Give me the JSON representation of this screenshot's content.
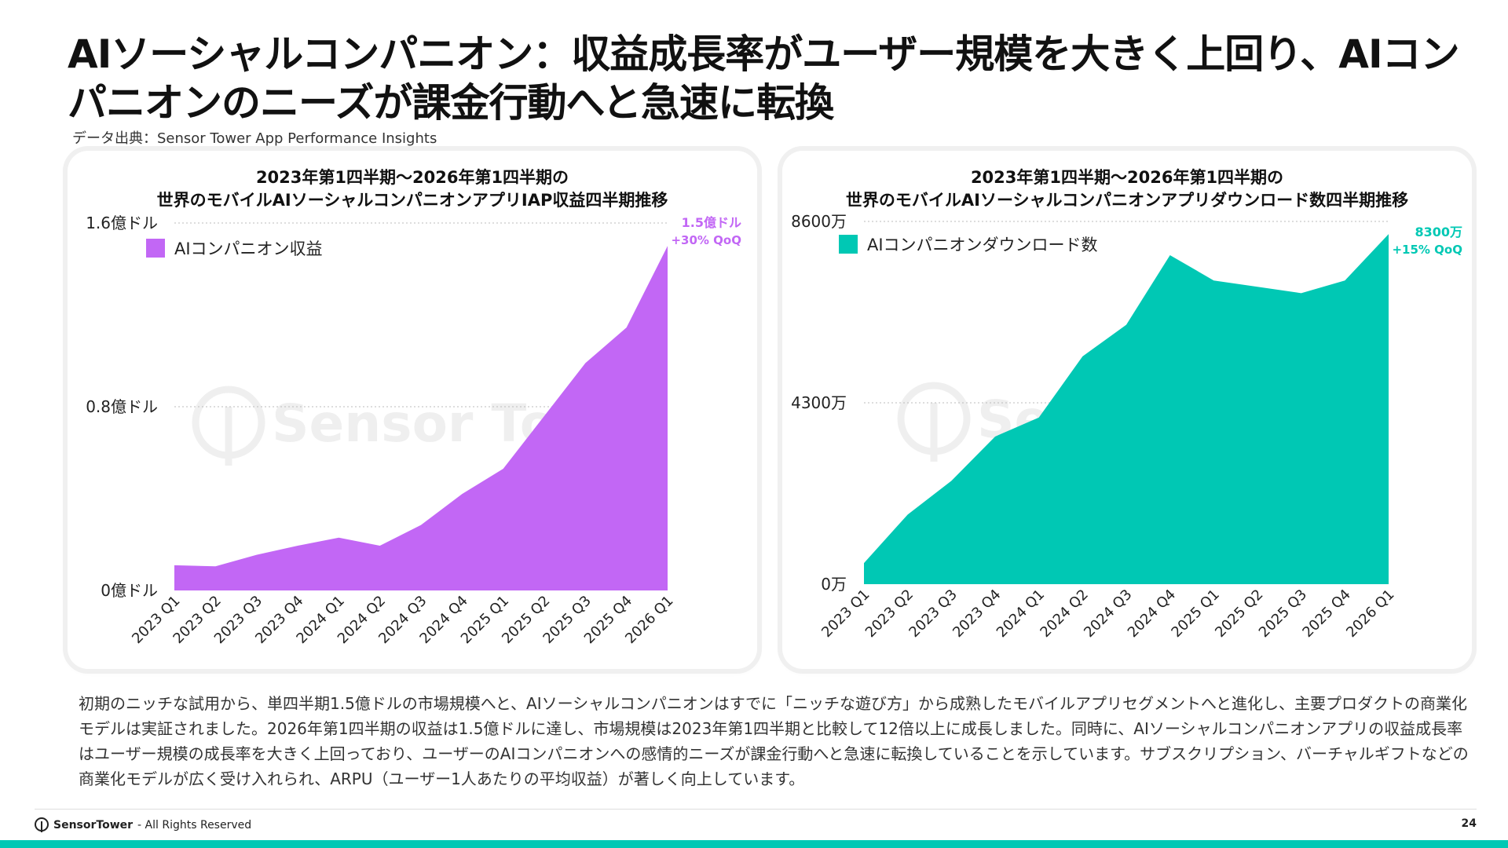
{
  "title": "AIソーシャルコンパニオン：収益成長率がユーザー規模を大きく上回り、AIコンパニオンのニーズが課金行動へと急速に転換",
  "source": "データ出典：Sensor Tower App Performance Insights",
  "watermark": "Sensor Tower",
  "chart_data": [
    {
      "type": "area",
      "title": "2023年第1四半期〜2026年第1四半期の",
      "subtitle": "世界のモバイルAIソーシャルコンパニオンアプリIAP収益四半期推移",
      "categories": [
        "2023 Q1",
        "2023 Q2",
        "2023 Q3",
        "2023 Q4",
        "2024 Q1",
        "2024 Q2",
        "2024 Q3",
        "2024 Q4",
        "2025 Q1",
        "2025 Q2",
        "2025 Q3",
        "2025 Q4",
        "2026 Q1"
      ],
      "series": [
        {
          "name": "AIコンパニオン収益",
          "values": [
            0.11,
            0.105,
            0.155,
            0.195,
            0.23,
            0.195,
            0.285,
            0.42,
            0.53,
            0.76,
            0.99,
            1.145,
            1.5
          ]
        }
      ],
      "y_ticks": [
        0,
        0.8,
        1.6
      ],
      "y_tick_labels": [
        "0億ドル",
        "0.8億ドル",
        "1.6億ドル"
      ],
      "ylim": [
        0,
        1.6
      ],
      "color": "#c267f5",
      "legend_position": "top-left",
      "annotation": {
        "value": "1.5億ドル",
        "change": "+30% QoQ"
      },
      "grid": "dotted"
    },
    {
      "type": "area",
      "title": "2023年第1四半期〜2026年第1四半期の",
      "subtitle": "世界のモバイルAIソーシャルコンパニオンアプリダウンロード数四半期推移",
      "categories": [
        "2023 Q1",
        "2023 Q2",
        "2023 Q3",
        "2023 Q4",
        "2024 Q1",
        "2024 Q2",
        "2024 Q3",
        "2024 Q4",
        "2025 Q1",
        "2025 Q2",
        "2025 Q3",
        "2025 Q4",
        "2026 Q1"
      ],
      "series": [
        {
          "name": "AIコンパニオンダウンロード数",
          "values": [
            500,
            1650,
            2450,
            3500,
            3950,
            5400,
            6150,
            7800,
            7200,
            7050,
            6900,
            7200,
            8300
          ]
        }
      ],
      "y_ticks": [
        0,
        4300,
        8600
      ],
      "y_tick_labels": [
        "0万",
        "4300万",
        "8600万"
      ],
      "ylim": [
        0,
        8600
      ],
      "color": "#00c8b4",
      "legend_position": "top-left",
      "annotation": {
        "value": "8300万",
        "change": "+15% QoQ"
      },
      "grid": "dotted"
    }
  ],
  "body_text": "初期のニッチな試用から、単四半期1.5億ドルの市場規模へと、AIソーシャルコンパニオンはすでに「ニッチな遊び方」から成熟したモバイルアプリセグメントへと進化し、主要プロダクトの商業化モデルは実証されました。2026年第1四半期の収益は1.5億ドルに達し、市場規模は2023年第1四半期と比較して12倍以上に成長しました。同時に、AIソーシャルコンパニオンアプリの収益成長率はユーザー規模の成長率を大きく上回っており、ユーザーのAIコンパニオンへの感情的ニーズが課金行動へと急速に転換していることを示しています。サブスクリプション、バーチャルギフトなどの商業化モデルが広く受け入れられ、ARPU（ユーザー1人あたりの平均収益）が著しく向上しています。",
  "footer": {
    "brand": "SensorTower",
    "rights": "- All Rights Reserved",
    "page": "24"
  }
}
